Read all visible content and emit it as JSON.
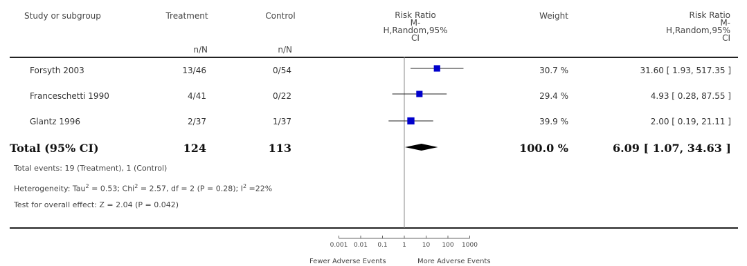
{
  "headers": {
    "study": "Study or subgroup",
    "treatment": "Treatment",
    "control": "Control",
    "rr_plot": [
      "Risk Ratio",
      "M-",
      "H,Random,95%",
      "CI"
    ],
    "weight": "Weight",
    "rr_text": [
      "Risk Ratio",
      "M-",
      "H,Random,95%",
      "CI"
    ],
    "treatment_sub": "n/N",
    "control_sub": "n/N"
  },
  "rows": [
    {
      "study": "Forsyth 2003",
      "treatment": "13/46",
      "control": "0/54",
      "weight": "30.7 %",
      "rr": "31.60 [ 1.93, 517.35 ]"
    },
    {
      "study": "Franceschetti 1990",
      "treatment": "4/41",
      "control": "0/22",
      "weight": "29.4 %",
      "rr": "4.93 [ 0.28, 87.55 ]"
    },
    {
      "study": "Glantz 1996",
      "treatment": "2/37",
      "control": "1/37",
      "weight": "39.9 %",
      "rr": "2.00 [ 0.19, 21.11 ]"
    }
  ],
  "total": {
    "label": "Total (95% CI)",
    "treatment": "124",
    "control": "113",
    "weight": "100.0 %",
    "rr": "6.09 [ 1.07, 34.63 ]"
  },
  "notes": {
    "events": "Total events: 19 (Treatment), 1 (Control)",
    "het_a": "Heterogeneity: Tau",
    "het_b": " = 0.53; Chi",
    "het_c": " = 2.57, df = 2 (P = 0.28); I",
    "het_d": " =22%",
    "sup": "2",
    "overall": "Test for overall effect: Z = 2.04 (P = 0.042)"
  },
  "axis": {
    "ticks": [
      "0.001",
      "0.01",
      "0.1",
      "1",
      "10",
      "100",
      "1000"
    ],
    "left_label": "Fewer Adverse Events",
    "right_label": "More Adverse Events"
  },
  "colors": {
    "marker": "#0000cc",
    "diamond": "#000000",
    "line": "#222222"
  },
  "chart_data": {
    "type": "forest",
    "scale": "log",
    "xlim": [
      0.001,
      1000
    ],
    "null_value": 1,
    "studies": [
      {
        "name": "Forsyth 2003",
        "rr": 31.6,
        "ci": [
          1.93,
          517.35
        ],
        "weight": 30.7
      },
      {
        "name": "Franceschetti 1990",
        "rr": 4.93,
        "ci": [
          0.28,
          87.55
        ],
        "weight": 29.4
      },
      {
        "name": "Glantz 1996",
        "rr": 2.0,
        "ci": [
          0.19,
          21.11
        ],
        "weight": 39.9
      }
    ],
    "pooled": {
      "rr": 6.09,
      "ci": [
        1.07,
        34.63
      ]
    }
  }
}
